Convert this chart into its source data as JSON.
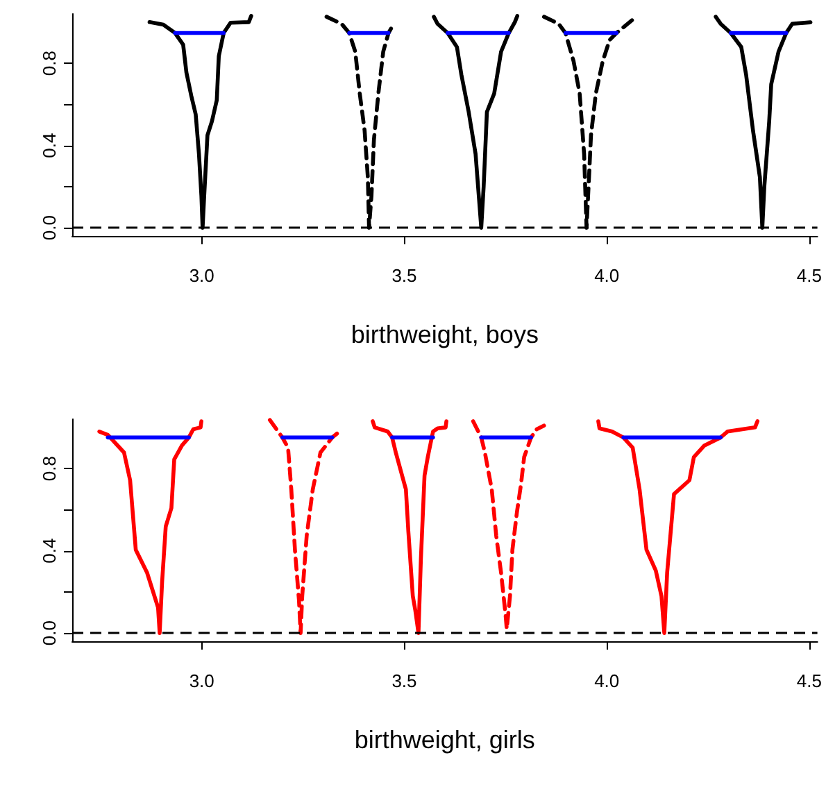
{
  "chart_data": [
    {
      "type": "line",
      "xlabel": "birthweight, boys",
      "xlim": [
        2.68,
        4.52
      ],
      "xticks": [
        {
          "value": 3,
          "label": "3.0"
        },
        {
          "value": 3.5,
          "label": "3.5"
        },
        {
          "value": 4,
          "label": "4.0"
        },
        {
          "value": 4.5,
          "label": "4.5"
        }
      ],
      "ylim": [
        -0.04,
        1.04
      ],
      "yticks": [
        {
          "value": 0,
          "label": "0.0"
        },
        {
          "value": 0.2,
          "label": null
        },
        {
          "value": 0.4,
          "label": "0.4"
        },
        {
          "value": 0.6,
          "label": null
        },
        {
          "value": 0.8,
          "label": "0.8"
        }
      ],
      "marker": "none",
      "ref_lines": [
        {
          "axis": "y",
          "value": 0,
          "color": "#000000",
          "line_style": "dashed"
        }
      ],
      "series": [
        {
          "color": "#000000",
          "line_style": "solid",
          "x": [
            2.871,
            2.905,
            2.934,
            2.954,
            2.962,
            2.974,
            2.985,
            2.993,
            2.999,
            3.002,
            3.006,
            3.014,
            3.025,
            3.037,
            3.042,
            3.054,
            3.071,
            3.116,
            3.122
          ],
          "values": [
            1.0,
            0.988,
            0.947,
            0.89,
            0.755,
            0.642,
            0.551,
            0.359,
            0.156,
            0,
            0.156,
            0.45,
            0.517,
            0.62,
            0.834,
            0.947,
            0.997,
            1.0,
            1.03
          ]
        },
        {
          "color": "#000000",
          "line_style": "dashed",
          "x": [
            3.308,
            3.345,
            3.364,
            3.379,
            3.39,
            3.402,
            3.41,
            3.413,
            3.419,
            3.425,
            3.436,
            3.448,
            3.461,
            3.473
          ],
          "values": [
            1.026,
            0.992,
            0.947,
            0.856,
            0.653,
            0.473,
            0.246,
            0,
            0.156,
            0.427,
            0.653,
            0.856,
            0.947,
            0.988
          ]
        },
        {
          "color": "#000000",
          "line_style": "solid",
          "x": [
            3.573,
            3.582,
            3.607,
            3.63,
            3.641,
            3.659,
            3.676,
            3.69,
            3.696,
            3.704,
            3.722,
            3.739,
            3.758,
            3.773,
            3.779
          ],
          "values": [
            1.026,
            0.992,
            0.947,
            0.879,
            0.744,
            0.563,
            0.359,
            0,
            0.201,
            0.563,
            0.653,
            0.856,
            0.947,
            1.0,
            1.03
          ]
        },
        {
          "color": "#000000",
          "line_style": "dashed",
          "x": [
            3.845,
            3.881,
            3.898,
            3.918,
            3.933,
            3.944,
            3.95,
            3.955,
            3.961,
            3.973,
            3.99,
            4.007,
            4.024,
            4.067
          ],
          "values": [
            1.026,
            0.992,
            0.947,
            0.81,
            0.653,
            0.359,
            0,
            0.201,
            0.45,
            0.653,
            0.81,
            0.913,
            0.947,
            1.017
          ]
        },
        {
          "color": "#000000",
          "line_style": "solid",
          "x": [
            4.269,
            4.281,
            4.306,
            4.332,
            4.344,
            4.361,
            4.378,
            4.384,
            4.389,
            4.401,
            4.406,
            4.424,
            4.443,
            4.458,
            4.503
          ],
          "values": [
            1.026,
            0.992,
            0.947,
            0.879,
            0.744,
            0.473,
            0.246,
            0,
            0.201,
            0.517,
            0.698,
            0.856,
            0.947,
            0.992,
            0.999
          ]
        },
        {
          "color": "#0000ff",
          "line_style": "solid",
          "x": [
            2.934,
            3.054
          ],
          "values": [
            0.947,
            0.947
          ]
        },
        {
          "color": "#0000ff",
          "line_style": "solid",
          "x": [
            3.364,
            3.461
          ],
          "values": [
            0.947,
            0.947
          ]
        },
        {
          "color": "#0000ff",
          "line_style": "solid",
          "x": [
            3.607,
            3.758
          ],
          "values": [
            0.947,
            0.947
          ]
        },
        {
          "color": "#0000ff",
          "line_style": "solid",
          "x": [
            3.898,
            4.024
          ],
          "values": [
            0.947,
            0.947
          ]
        },
        {
          "color": "#0000ff",
          "line_style": "solid",
          "x": [
            4.306,
            4.443
          ],
          "values": [
            0.947,
            0.947
          ]
        }
      ]
    },
    {
      "type": "line",
      "xlabel": "birthweight, girls",
      "xlim": [
        2.68,
        4.52
      ],
      "xticks": [
        {
          "value": 3,
          "label": "3.0"
        },
        {
          "value": 3.5,
          "label": "3.5"
        },
        {
          "value": 4,
          "label": "4.0"
        },
        {
          "value": 4.5,
          "label": "4.5"
        }
      ],
      "ylim": [
        -0.04,
        1.04
      ],
      "yticks": [
        {
          "value": 0,
          "label": "0.0"
        },
        {
          "value": 0.2,
          "label": null
        },
        {
          "value": 0.4,
          "label": "0.4"
        },
        {
          "value": 0.6,
          "label": null
        },
        {
          "value": 0.8,
          "label": "0.8"
        }
      ],
      "marker": "none",
      "ref_lines": [
        {
          "axis": "y",
          "value": 0,
          "color": "#000000",
          "line_style": "dashed"
        }
      ],
      "series": [
        {
          "color": "#ff0000",
          "line_style": "solid",
          "x": [
            2.747,
            2.768,
            2.808,
            2.823,
            2.837,
            2.865,
            2.892,
            2.896,
            2.902,
            2.911,
            2.925,
            2.932,
            2.951,
            2.968,
            2.979,
            2.997,
            2.999
          ],
          "values": [
            0.98,
            0.964,
            0.878,
            0.743,
            0.405,
            0.293,
            0.124,
            0,
            0.248,
            0.518,
            0.608,
            0.845,
            0.912,
            0.951,
            0.991,
            1.0,
            1.03
          ]
        },
        {
          "color": "#ff0000",
          "line_style": "dashed",
          "x": [
            3.168,
            3.199,
            3.213,
            3.221,
            3.23,
            3.24,
            3.244,
            3.248,
            3.259,
            3.274,
            3.293,
            3.322,
            3.347
          ],
          "values": [
            1.036,
            0.951,
            0.901,
            0.698,
            0.405,
            0.158,
            0,
            0.18,
            0.473,
            0.698,
            0.878,
            0.951,
            0.991
          ]
        },
        {
          "color": "#ff0000",
          "line_style": "solid",
          "x": [
            3.422,
            3.427,
            3.459,
            3.47,
            3.479,
            3.504,
            3.51,
            3.521,
            3.527,
            3.535,
            3.541,
            3.55,
            3.558,
            3.571,
            3.582,
            3.602,
            3.604
          ],
          "values": [
            1.03,
            1.0,
            0.98,
            0.951,
            0.878,
            0.698,
            0.495,
            0.18,
            0.113,
            0,
            0.36,
            0.766,
            0.856,
            0.98,
            0.995,
            1.0,
            1.03
          ]
        },
        {
          "color": "#ff0000",
          "line_style": "dashed",
          "x": [
            3.67,
            3.69,
            3.699,
            3.716,
            3.727,
            3.739,
            3.75,
            3.753,
            3.761,
            3.767,
            3.778,
            3.788,
            3.796,
            3.813,
            3.827,
            3.845
          ],
          "values": [
            1.03,
            0.951,
            0.878,
            0.698,
            0.473,
            0.293,
            0.09,
            0.02,
            0.18,
            0.405,
            0.586,
            0.721,
            0.856,
            0.951,
            0.991,
            1.009
          ]
        },
        {
          "color": "#ff0000",
          "line_style": "solid",
          "x": [
            3.979,
            3.982,
            4.013,
            4.041,
            4.064,
            4.081,
            4.098,
            4.121,
            4.135,
            4.142,
            4.149,
            4.166,
            4.204,
            4.215,
            4.241,
            4.281,
            4.298,
            4.366,
            4.372
          ],
          "values": [
            1.03,
            0.995,
            0.98,
            0.951,
            0.901,
            0.698,
            0.405,
            0.304,
            0.18,
            0,
            0.293,
            0.676,
            0.743,
            0.856,
            0.912,
            0.951,
            0.98,
            1.0,
            1.03
          ]
        },
        {
          "color": "#0000ff",
          "line_style": "solid",
          "x": [
            2.768,
            2.968
          ],
          "values": [
            0.951,
            0.951
          ]
        },
        {
          "color": "#0000ff",
          "line_style": "solid",
          "x": [
            3.199,
            3.322
          ],
          "values": [
            0.951,
            0.951
          ]
        },
        {
          "color": "#0000ff",
          "line_style": "solid",
          "x": [
            3.47,
            3.571
          ],
          "values": [
            0.951,
            0.951
          ]
        },
        {
          "color": "#0000ff",
          "line_style": "solid",
          "x": [
            3.69,
            3.813
          ],
          "values": [
            0.951,
            0.951
          ]
        },
        {
          "color": "#0000ff",
          "line_style": "solid",
          "x": [
            4.041,
            4.281
          ],
          "values": [
            0.951,
            0.951
          ]
        }
      ]
    }
  ]
}
